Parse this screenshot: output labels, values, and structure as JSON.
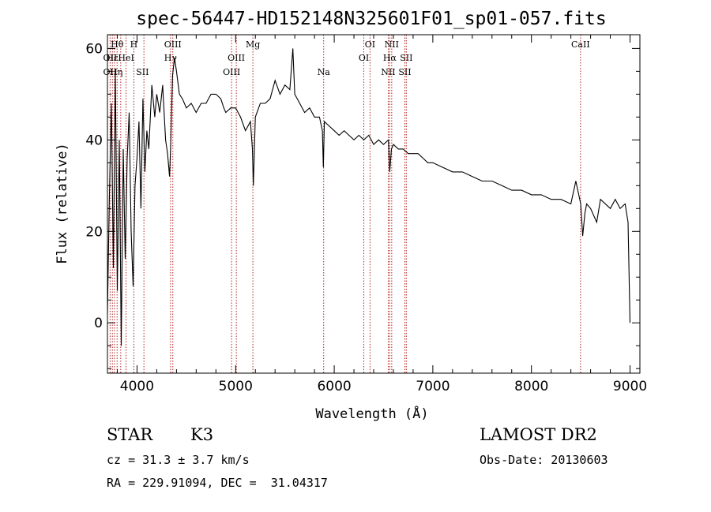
{
  "chart_data": {
    "type": "line",
    "title": "spec-56447-HD152148N325601F01_sp01-057.fits",
    "xlabel": "Wavelength (Å)",
    "ylabel": "Flux (relative)",
    "xlim": [
      3700,
      9100
    ],
    "ylim": [
      -11,
      63
    ],
    "xticks": [
      4000,
      5000,
      6000,
      7000,
      8000,
      9000
    ],
    "yticks": [
      0,
      20,
      40,
      60
    ],
    "grid": false,
    "series": [
      {
        "x": [
          3700,
          3720,
          3740,
          3760,
          3780,
          3800,
          3820,
          3840,
          3860,
          3880,
          3900,
          3920,
          3940,
          3960,
          3980,
          4000,
          4020,
          4040,
          4060,
          4080,
          4100,
          4120,
          4150,
          4180,
          4200,
          4230,
          4260,
          4290,
          4310,
          4330,
          4340,
          4360,
          4380,
          4400,
          4430,
          4460,
          4500,
          4550,
          4600,
          4650,
          4700,
          4750,
          4800,
          4850,
          4880,
          4900,
          4950,
          5000,
          5050,
          5100,
          5150,
          5170,
          5180,
          5200,
          5250,
          5300,
          5350,
          5400,
          5450,
          5500,
          5550,
          5580,
          5600,
          5650,
          5700,
          5750,
          5800,
          5850,
          5880,
          5890,
          5900,
          5950,
          6000,
          6050,
          6100,
          6150,
          6200,
          6250,
          6300,
          6350,
          6400,
          6450,
          6500,
          6550,
          6563,
          6580,
          6600,
          6650,
          6700,
          6750,
          6800,
          6850,
          6900,
          6950,
          7000,
          7100,
          7200,
          7300,
          7400,
          7500,
          7600,
          7700,
          7800,
          7900,
          8000,
          8100,
          8200,
          8300,
          8400,
          8450,
          8500,
          8520,
          8542,
          8560,
          8600,
          8662,
          8700,
          8800,
          8850,
          8900,
          8950,
          8980,
          9000
        ],
        "y": [
          2,
          28,
          48,
          12,
          55,
          7,
          40,
          -5,
          38,
          14,
          36,
          46,
          20,
          8,
          30,
          36,
          44,
          25,
          49,
          33,
          42,
          38,
          52,
          45,
          50,
          46,
          52,
          40,
          37,
          32,
          38,
          54,
          58,
          55,
          50,
          49,
          47,
          48,
          46,
          48,
          48,
          50,
          50,
          49,
          47,
          46,
          47,
          47,
          45,
          42,
          44,
          38,
          30,
          45,
          48,
          48,
          49,
          53,
          50,
          52,
          51,
          60,
          50,
          48,
          46,
          47,
          45,
          45,
          42,
          34,
          44,
          43,
          42,
          41,
          42,
          41,
          40,
          41,
          40,
          41,
          39,
          40,
          39,
          40,
          33,
          38,
          39,
          38,
          38,
          37,
          37,
          37,
          36,
          35,
          35,
          34,
          33,
          33,
          32,
          31,
          31,
          30,
          29,
          29,
          28,
          28,
          27,
          27,
          26,
          31,
          26,
          19,
          24,
          26,
          25,
          22,
          27,
          25,
          27,
          25,
          26,
          22,
          0
        ]
      }
    ]
  },
  "line_labels": [
    {
      "text": "Hθ",
      "wl": 3798,
      "row": 1
    },
    {
      "text": "OII",
      "wl": 3727,
      "row": 2
    },
    {
      "text": "Hε",
      "wl": 3750,
      "row": 2
    },
    {
      "text": "OII",
      "wl": 3727,
      "row": 3
    },
    {
      "text": "Hη",
      "wl": 3790,
      "row": 3
    },
    {
      "text": "H",
      "wl": 3968,
      "row": 1
    },
    {
      "text": "HeI",
      "wl": 3889,
      "row": 2
    },
    {
      "text": "SII",
      "wl": 4055,
      "row": 3
    },
    {
      "text": "OIII",
      "wl": 4363,
      "row": 1
    },
    {
      "text": "Hγ",
      "wl": 4340,
      "row": 2
    },
    {
      "text": "OIII",
      "wl": 5007,
      "row": 2
    },
    {
      "text": "OIII",
      "wl": 4959,
      "row": 3
    },
    {
      "text": "Mg",
      "wl": 5175,
      "row": 1
    },
    {
      "text": "Na",
      "wl": 5893,
      "row": 3
    },
    {
      "text": "OI",
      "wl": 6363,
      "row": 1
    },
    {
      "text": "OI",
      "wl": 6300,
      "row": 2
    },
    {
      "text": "NII",
      "wl": 6583,
      "row": 1
    },
    {
      "text": "Hα",
      "wl": 6563,
      "row": 2
    },
    {
      "text": "SII",
      "wl": 6731,
      "row": 2
    },
    {
      "text": "NII",
      "wl": 6548,
      "row": 3
    },
    {
      "text": "SII",
      "wl": 6716,
      "row": 3
    },
    {
      "text": "CaII",
      "wl": 8498,
      "row": 1
    }
  ],
  "line_wavelengths": [
    3727,
    3750,
    3771,
    3798,
    3835,
    3889,
    3968,
    4070,
    4340,
    4363,
    4959,
    5007,
    5175,
    5893,
    6300,
    6363,
    6548,
    6563,
    6583,
    6716,
    6731,
    8498
  ],
  "info": {
    "object_class": "STAR",
    "subclass": "K3",
    "cz": "cz = 31.3 ± 3.7 km/s",
    "coords": "RA = 229.91094, DEC =  31.04317",
    "survey": "LAMOST DR2",
    "obs_date": "Obs-Date: 20130603"
  },
  "colors": {
    "spectrum": "#000000",
    "line_markers": "#b22222",
    "axes": "#000000"
  }
}
